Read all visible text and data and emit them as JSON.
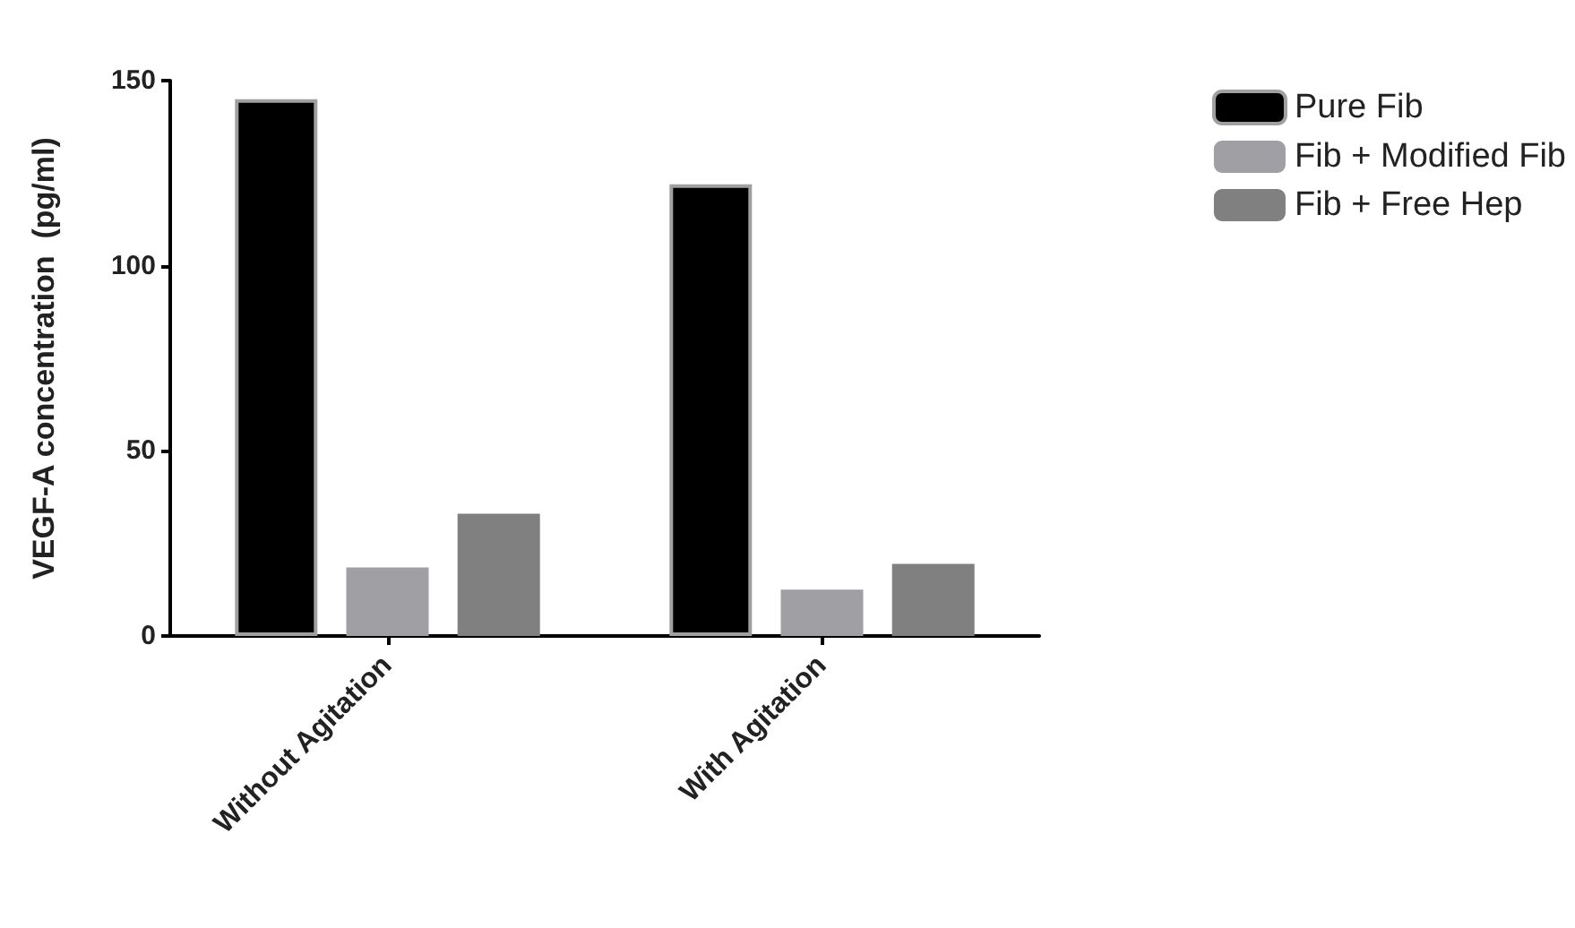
{
  "chart_data": {
    "type": "bar",
    "ylabel": "VEGF-A concentration  (pg/ml)",
    "categories": [
      "Without Agitation",
      "With Agitation"
    ],
    "series": [
      {
        "name": "Pure Fib",
        "color": "#000000",
        "values": [
          145,
          122
        ]
      },
      {
        "name": "Fib + Modified Fib",
        "color": "#a0a0a4",
        "values": [
          18.5,
          12.5
        ]
      },
      {
        "name": "Fib + Free Hep",
        "color": "#808080",
        "values": [
          33,
          19.5
        ]
      }
    ],
    "ylim": [
      0,
      150
    ],
    "yticks": [
      0,
      50,
      100,
      150
    ],
    "grid": false,
    "legend": "top right"
  }
}
